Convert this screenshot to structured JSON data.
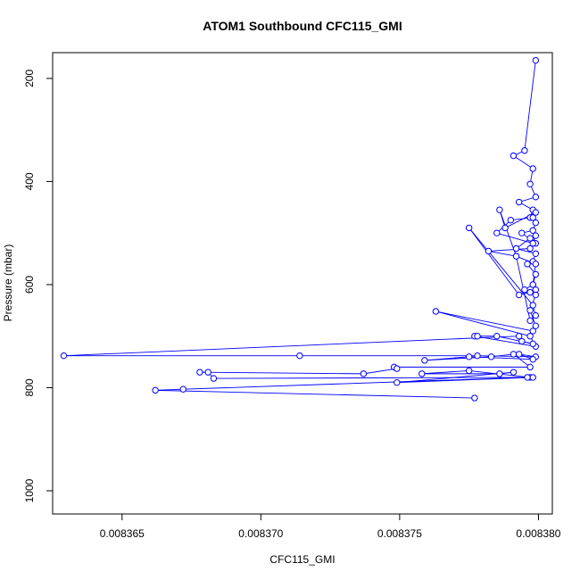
{
  "chart_data": {
    "type": "line",
    "title": "ATOM1 Southbound CFC115_GMI",
    "xlabel": "CFC115_GMI",
    "ylabel": "Pressure (mbar)",
    "xlim": [
      0.0083625,
      0.0083805
    ],
    "ylim": [
      1045,
      150
    ],
    "y_reversed": true,
    "x_ticks": [
      {
        "value": 0.008365,
        "label": "0.008365"
      },
      {
        "value": 0.00837,
        "label": "0.008370"
      },
      {
        "value": 0.008375,
        "label": "0.008375"
      },
      {
        "value": 0.00838,
        "label": "0.008380"
      }
    ],
    "y_ticks": [
      {
        "value": 200,
        "label": "200"
      },
      {
        "value": 400,
        "label": "400"
      },
      {
        "value": 600,
        "label": "600"
      },
      {
        "value": 800,
        "label": "800"
      },
      {
        "value": 1000,
        "label": "1000"
      }
    ],
    "series_color": "#0000ff",
    "grid": false,
    "legend": "none",
    "series": [
      {
        "marker": "open-circle",
        "x": [
          0.0083799,
          0.0083795,
          0.0083791,
          0.0083798,
          0.0083797,
          0.0083799,
          0.0083793,
          0.0083798,
          0.0083797,
          0.0083799,
          0.0083798,
          0.0083794,
          0.0083799,
          0.0083797,
          0.0083792,
          0.0083799,
          0.0083798,
          0.0083796,
          0.0083799,
          0.0083798,
          0.0083799,
          0.0083797,
          0.0083793,
          0.0083775,
          0.0083798,
          0.0083799,
          0.0083797,
          0.0083792,
          0.0083786,
          0.0083788,
          0.0083799,
          0.0083798,
          0.008379,
          0.0083785,
          0.0083798,
          0.0083799,
          0.0083797,
          0.0083782,
          0.0083792,
          0.0083799,
          0.0083798,
          0.0083795,
          0.0083799,
          0.0083797,
          0.0083799,
          0.0083798,
          0.0083763,
          0.0083797,
          0.0083799,
          0.0083777,
          0.0083778,
          0.0083785,
          0.0083798,
          0.0083794,
          0.0083793,
          0.0083629,
          0.0083714,
          0.0083778,
          0.0083799,
          0.0083793,
          0.0083798,
          0.0083775,
          0.0083759,
          0.0083783,
          0.0083791,
          0.0083797,
          0.0083748,
          0.0083749,
          0.0083737,
          0.0083678,
          0.0083681,
          0.0083683,
          0.0083797,
          0.0083775,
          0.0083758,
          0.0083786,
          0.0083791,
          0.0083749,
          0.0083798,
          0.0083796,
          0.0083672,
          0.0083662,
          0.0083777
        ],
        "y": [
          165,
          340,
          350,
          375,
          405,
          430,
          440,
          455,
          470,
          480,
          495,
          500,
          520,
          510,
          530,
          540,
          555,
          560,
          580,
          600,
          610,
          615,
          620,
          490,
          640,
          660,
          670,
          545,
          455,
          490,
          460,
          470,
          475,
          500,
          520,
          505,
          530,
          535,
          545,
          560,
          600,
          610,
          620,
          650,
          680,
          690,
          652,
          700,
          720,
          700,
          700,
          700,
          715,
          710,
          700,
          738,
          738,
          738,
          740,
          735,
          745,
          740,
          747,
          740,
          735,
          760,
          760,
          763,
          773,
          770,
          770,
          782,
          780,
          767,
          773,
          773,
          770,
          790,
          780,
          780,
          803,
          805,
          820
        ]
      }
    ]
  }
}
